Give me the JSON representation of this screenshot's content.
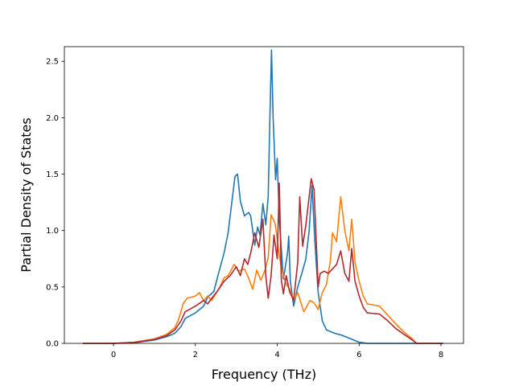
{
  "chart_data": {
    "type": "line",
    "title": "",
    "xlabel": "Frequency (THz)",
    "ylabel": "Partial Density of States",
    "xlim": [
      -1.2,
      8.55
    ],
    "ylim": [
      0,
      2.63
    ],
    "xticks": [
      0,
      2,
      4,
      6,
      8
    ],
    "xtick_labels": [
      "0",
      "2",
      "4",
      "6",
      "8"
    ],
    "yticks": [
      0.0,
      0.5,
      1.0,
      1.5,
      2.0,
      2.5
    ],
    "ytick_labels": [
      "0.0",
      "0.5",
      "1.0",
      "1.5",
      "2.0",
      "2.5"
    ],
    "grid": false,
    "legend": "none",
    "series": [
      {
        "color": "#1f77b4",
        "points": [
          [
            -0.75,
            0
          ],
          [
            0,
            0
          ],
          [
            0.5,
            0.005
          ],
          [
            1.0,
            0.03
          ],
          [
            1.3,
            0.06
          ],
          [
            1.5,
            0.09
          ],
          [
            1.65,
            0.15
          ],
          [
            1.75,
            0.22
          ],
          [
            2.0,
            0.27
          ],
          [
            2.2,
            0.33
          ],
          [
            2.3,
            0.41
          ],
          [
            2.45,
            0.46
          ],
          [
            2.55,
            0.6
          ],
          [
            2.7,
            0.8
          ],
          [
            2.8,
            0.98
          ],
          [
            2.9,
            1.28
          ],
          [
            2.97,
            1.48
          ],
          [
            3.03,
            1.5
          ],
          [
            3.1,
            1.26
          ],
          [
            3.2,
            1.13
          ],
          [
            3.3,
            1.16
          ],
          [
            3.35,
            1.13
          ],
          [
            3.45,
            0.87
          ],
          [
            3.52,
            1.03
          ],
          [
            3.58,
            0.96
          ],
          [
            3.65,
            1.24
          ],
          [
            3.72,
            1.05
          ],
          [
            3.78,
            1.3
          ],
          [
            3.82,
            2.0
          ],
          [
            3.86,
            2.6
          ],
          [
            3.9,
            2.0
          ],
          [
            3.96,
            1.45
          ],
          [
            4.0,
            1.64
          ],
          [
            4.05,
            1.1
          ],
          [
            4.15,
            0.57
          ],
          [
            4.25,
            0.8
          ],
          [
            4.28,
            0.95
          ],
          [
            4.32,
            0.55
          ],
          [
            4.4,
            0.33
          ],
          [
            4.5,
            0.5
          ],
          [
            4.6,
            0.62
          ],
          [
            4.7,
            0.75
          ],
          [
            4.78,
            1.0
          ],
          [
            4.85,
            1.4
          ],
          [
            4.92,
            0.9
          ],
          [
            5.0,
            0.45
          ],
          [
            5.1,
            0.2
          ],
          [
            5.2,
            0.12
          ],
          [
            5.4,
            0.09
          ],
          [
            5.6,
            0.07
          ],
          [
            5.8,
            0.04
          ],
          [
            6.0,
            0.01
          ],
          [
            6.2,
            0.0
          ],
          [
            7.0,
            0.0
          ],
          [
            8.05,
            0.0
          ]
        ]
      },
      {
        "color": "#ff7f0e",
        "points": [
          [
            -0.75,
            0
          ],
          [
            0,
            0
          ],
          [
            0.5,
            0.01
          ],
          [
            1.0,
            0.04
          ],
          [
            1.3,
            0.08
          ],
          [
            1.5,
            0.14
          ],
          [
            1.6,
            0.22
          ],
          [
            1.7,
            0.35
          ],
          [
            1.8,
            0.4
          ],
          [
            2.0,
            0.42
          ],
          [
            2.1,
            0.45
          ],
          [
            2.2,
            0.38
          ],
          [
            2.3,
            0.42
          ],
          [
            2.4,
            0.38
          ],
          [
            2.5,
            0.44
          ],
          [
            2.6,
            0.5
          ],
          [
            2.7,
            0.58
          ],
          [
            2.8,
            0.6
          ],
          [
            2.95,
            0.7
          ],
          [
            3.05,
            0.64
          ],
          [
            3.2,
            0.66
          ],
          [
            3.3,
            0.58
          ],
          [
            3.4,
            0.48
          ],
          [
            3.5,
            0.65
          ],
          [
            3.6,
            0.56
          ],
          [
            3.7,
            0.65
          ],
          [
            3.78,
            0.76
          ],
          [
            3.85,
            1.14
          ],
          [
            3.95,
            1.06
          ],
          [
            4.05,
            0.78
          ],
          [
            4.1,
            0.67
          ],
          [
            4.2,
            0.54
          ],
          [
            4.3,
            0.48
          ],
          [
            4.4,
            0.38
          ],
          [
            4.5,
            0.45
          ],
          [
            4.65,
            0.28
          ],
          [
            4.8,
            0.38
          ],
          [
            4.9,
            0.36
          ],
          [
            5.0,
            0.3
          ],
          [
            5.1,
            0.45
          ],
          [
            5.2,
            0.52
          ],
          [
            5.3,
            0.74
          ],
          [
            5.35,
            0.98
          ],
          [
            5.45,
            0.9
          ],
          [
            5.55,
            1.3
          ],
          [
            5.65,
            1.0
          ],
          [
            5.75,
            0.82
          ],
          [
            5.82,
            1.1
          ],
          [
            5.9,
            0.72
          ],
          [
            6.0,
            0.55
          ],
          [
            6.1,
            0.42
          ],
          [
            6.2,
            0.35
          ],
          [
            6.5,
            0.33
          ],
          [
            6.7,
            0.25
          ],
          [
            6.9,
            0.17
          ],
          [
            7.1,
            0.1
          ],
          [
            7.3,
            0.04
          ],
          [
            7.4,
            0.0
          ],
          [
            8.05,
            0.0
          ]
        ]
      },
      {
        "color": "#b2282d",
        "points": [
          [
            -0.75,
            0
          ],
          [
            0,
            0
          ],
          [
            0.5,
            0.008
          ],
          [
            1.0,
            0.035
          ],
          [
            1.3,
            0.07
          ],
          [
            1.5,
            0.12
          ],
          [
            1.65,
            0.2
          ],
          [
            1.75,
            0.28
          ],
          [
            2.0,
            0.33
          ],
          [
            2.2,
            0.38
          ],
          [
            2.3,
            0.35
          ],
          [
            2.4,
            0.4
          ],
          [
            2.55,
            0.47
          ],
          [
            2.7,
            0.55
          ],
          [
            2.85,
            0.6
          ],
          [
            3.0,
            0.68
          ],
          [
            3.1,
            0.6
          ],
          [
            3.2,
            0.75
          ],
          [
            3.28,
            0.7
          ],
          [
            3.35,
            0.8
          ],
          [
            3.45,
            0.98
          ],
          [
            3.55,
            0.85
          ],
          [
            3.65,
            1.1
          ],
          [
            3.72,
            0.6
          ],
          [
            3.78,
            0.4
          ],
          [
            3.85,
            0.6
          ],
          [
            3.92,
            0.96
          ],
          [
            4.0,
            0.75
          ],
          [
            4.05,
            1.42
          ],
          [
            4.1,
            0.56
          ],
          [
            4.15,
            0.44
          ],
          [
            4.22,
            0.6
          ],
          [
            4.3,
            0.46
          ],
          [
            4.4,
            0.38
          ],
          [
            4.5,
            0.72
          ],
          [
            4.55,
            1.3
          ],
          [
            4.62,
            0.86
          ],
          [
            4.7,
            1.05
          ],
          [
            4.78,
            1.3
          ],
          [
            4.83,
            1.46
          ],
          [
            4.9,
            1.36
          ],
          [
            5.0,
            0.5
          ],
          [
            5.05,
            0.62
          ],
          [
            5.15,
            0.64
          ],
          [
            5.25,
            0.62
          ],
          [
            5.35,
            0.66
          ],
          [
            5.45,
            0.7
          ],
          [
            5.55,
            0.82
          ],
          [
            5.65,
            0.62
          ],
          [
            5.75,
            0.55
          ],
          [
            5.82,
            0.84
          ],
          [
            5.9,
            0.55
          ],
          [
            6.0,
            0.42
          ],
          [
            6.1,
            0.32
          ],
          [
            6.2,
            0.27
          ],
          [
            6.5,
            0.26
          ],
          [
            6.7,
            0.2
          ],
          [
            6.9,
            0.13
          ],
          [
            7.1,
            0.08
          ],
          [
            7.3,
            0.03
          ],
          [
            7.4,
            0.0
          ],
          [
            8.05,
            0.0
          ]
        ]
      }
    ]
  }
}
